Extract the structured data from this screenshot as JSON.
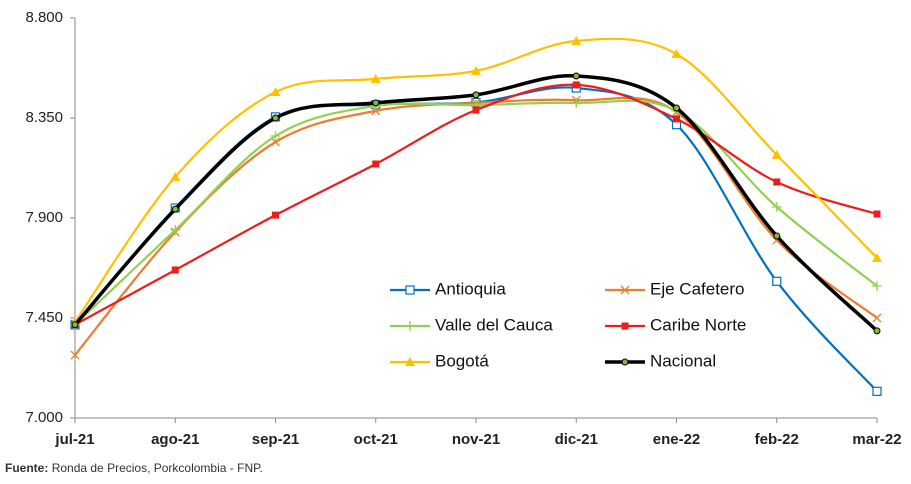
{
  "chart_data": {
    "type": "line",
    "categories": [
      "jul-21",
      "ago-21",
      "sep-21",
      "oct-21",
      "nov-21",
      "dic-21",
      "ene-22",
      "feb-22",
      "mar-22"
    ],
    "ylim": [
      7000,
      8800
    ],
    "yticks": [
      {
        "value": 7000,
        "label": "7.000"
      },
      {
        "value": 7450,
        "label": "7.450"
      },
      {
        "value": 7900,
        "label": "7.900"
      },
      {
        "value": 8350,
        "label": "8.350"
      },
      {
        "value": 8800,
        "label": "8.800"
      }
    ],
    "grid": false,
    "smooth": true,
    "series": [
      {
        "name": "Antioquia",
        "color": "#0070c0",
        "marker": "square-open",
        "values": [
          7419,
          7945,
          8355,
          8410,
          8420,
          8485,
          8320,
          7615,
          7120
        ]
      },
      {
        "name": "Eje Cafetero",
        "color": "#ed7d31",
        "marker": "x",
        "values": [
          7283,
          7837,
          8242,
          8382,
          8418,
          8430,
          8377,
          7800,
          7450
        ]
      },
      {
        "name": "Valle del Cauca",
        "color": "#92d050",
        "marker": "plus",
        "values": [
          7420,
          7846,
          8269,
          8404,
          8408,
          8418,
          8382,
          7950,
          7594
        ]
      },
      {
        "name": "Caribe Norte",
        "color": "#ee1c1c",
        "marker": "square",
        "values": [
          7420,
          7666,
          7913,
          8143,
          8386,
          8499,
          8346,
          8062,
          7918
        ]
      },
      {
        "name": "Bogotá",
        "color": "#ffc000",
        "marker": "triangle",
        "values": [
          7432,
          8085,
          8467,
          8526,
          8562,
          8697,
          8638,
          8184,
          7720
        ]
      },
      {
        "name": "Nacional",
        "color": "#000000",
        "marker": "circle",
        "values": [
          7420,
          7940,
          8350,
          8418,
          8454,
          8539,
          8395,
          7819,
          7392
        ]
      }
    ],
    "source": {
      "label": "Fuente:",
      "text": "Ronda de Precios, Porkcolombia - FNP."
    }
  }
}
